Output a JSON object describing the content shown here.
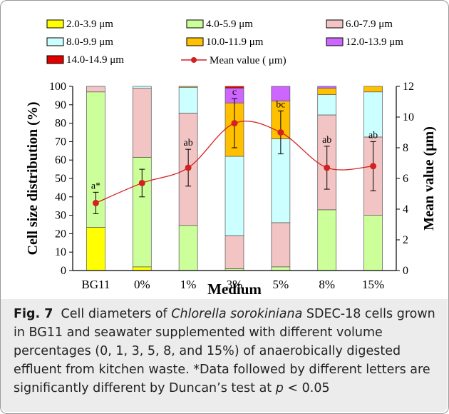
{
  "chart_data": {
    "type": "bar",
    "stacked": true,
    "categories": [
      "BG11",
      "0%",
      "1%",
      "3%",
      "5%",
      "8%",
      "15%"
    ],
    "series": [
      {
        "name": "2.0-3.9 μm",
        "color": "#ffff00",
        "values": [
          23.5,
          2,
          0,
          0,
          0,
          0,
          0
        ]
      },
      {
        "name": "4.0-5.9 μm",
        "color": "#ccff99",
        "values": [
          73.5,
          59.5,
          24.5,
          1,
          2,
          33,
          30
        ]
      },
      {
        "name": "6.0-7.9 μm",
        "color": "#f2c4c4",
        "values": [
          3,
          37.5,
          61,
          18,
          24,
          51.5,
          42.5
        ]
      },
      {
        "name": "8.0-9.9 μm",
        "color": "#ccffff",
        "values": [
          0,
          1,
          14,
          43,
          45.5,
          11,
          24.5
        ]
      },
      {
        "name": "10.0-11.9 μm",
        "color": "#ffc000",
        "values": [
          0,
          0,
          0.5,
          29,
          20.5,
          3.5,
          3
        ]
      },
      {
        "name": "12.0-13.9 μm",
        "color": "#cc66ff",
        "values": [
          0,
          0,
          0,
          8,
          8,
          1,
          0
        ]
      },
      {
        "name": "14.0-14.9 μm",
        "color": "#e00000",
        "values": [
          0,
          0,
          0,
          1,
          0,
          0,
          0
        ]
      }
    ],
    "mean": {
      "name": "Mean value ( μm)",
      "color": "#d42020",
      "values": [
        4.4,
        5.7,
        6.7,
        9.6,
        9.0,
        6.7,
        6.8
      ],
      "errors": [
        0.7,
        0.9,
        1.2,
        1.6,
        1.4,
        1.4,
        1.6
      ],
      "letters": [
        "a*",
        "",
        "ab",
        "c",
        "bc",
        "ab",
        "ab"
      ]
    },
    "xlabel": "Medium",
    "ylabel": "Cell size distribution (%)",
    "y2label": "Mean value (μm)",
    "ylim": [
      0,
      100
    ],
    "y2lim": [
      0,
      12
    ],
    "yticks": [
      "0",
      "10",
      "20",
      "30",
      "40",
      "50",
      "60",
      "70",
      "80",
      "90",
      "100"
    ],
    "y2ticks": [
      "0",
      "2",
      "4",
      "6",
      "8",
      "10",
      "12"
    ],
    "legend_position": "top",
    "grid": false
  },
  "caption": {
    "label": "Fig. 7",
    "text_before_italic": "Cell diameters of ",
    "italic": "Chlorella sorokiniana",
    "text_after_italic": " SDEC-18 cells grown in BG11 and seawater supplemented with different volume percentages (0, 1, 3, 5, 8, and 15%) of anaerobically digested effluent from kitchen waste. *Data followed by different letters are significantly different by Duncan’s test at ",
    "p_symbol": "p",
    "p_value": " < 0.05"
  }
}
